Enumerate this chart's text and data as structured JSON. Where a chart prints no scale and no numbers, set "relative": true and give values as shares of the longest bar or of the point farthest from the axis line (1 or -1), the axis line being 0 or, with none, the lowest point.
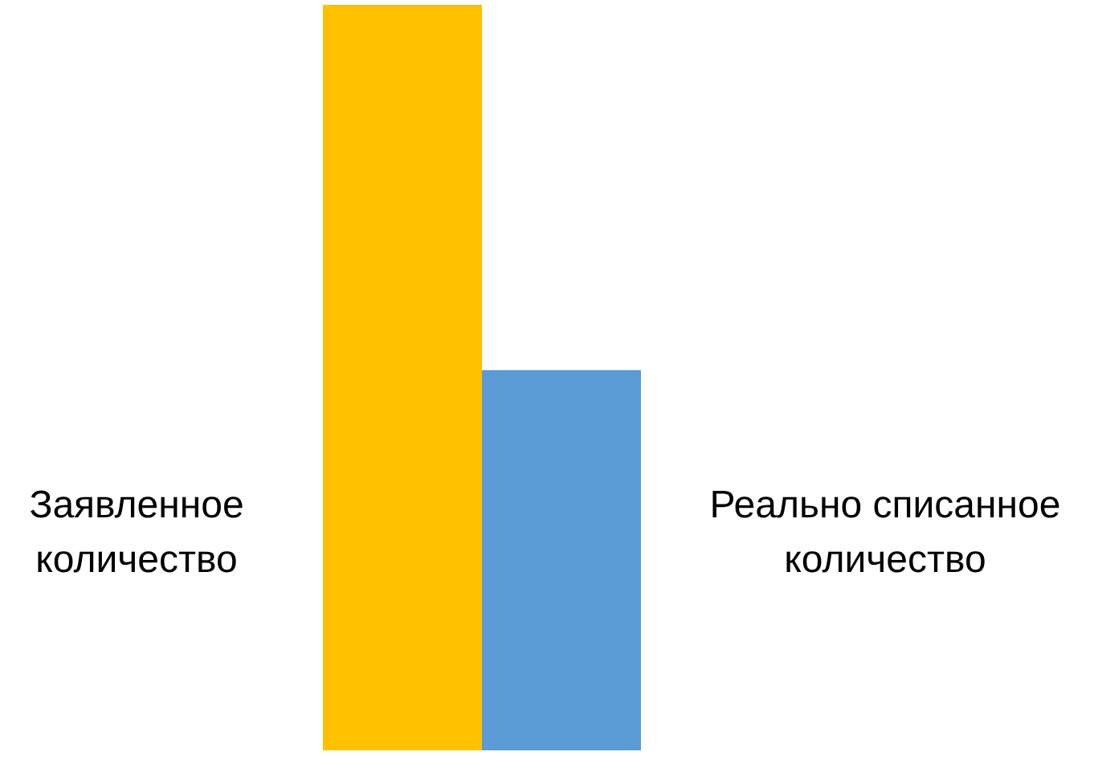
{
  "chart_data": {
    "type": "bar",
    "relative": true,
    "categories": [
      null
    ],
    "series": [
      {
        "name": "Заявленное количество",
        "color": "#ffc000",
        "values": [
          1
        ]
      },
      {
        "name": "Реально списанное количество",
        "color": "#5b9bd5",
        "values": [
          0.51
        ]
      }
    ]
  }
}
